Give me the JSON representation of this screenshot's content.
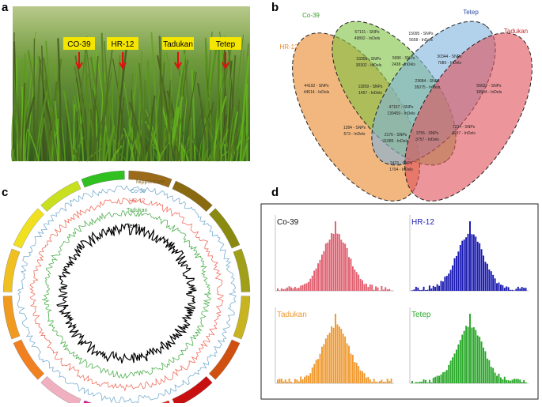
{
  "panels": {
    "a": "a",
    "b": "b",
    "c": "c",
    "d": "d"
  },
  "photo": {
    "labels": [
      "CO-39",
      "HR-12",
      "Tadukan",
      "Tetep"
    ]
  },
  "venn": {
    "sets": [
      "HR-12",
      "Co-39",
      "Tetep",
      "Tadukan"
    ],
    "regions": [
      [
        "57131 - SNPs",
        "49892 - InDels"
      ],
      [
        "15095 - SNPs",
        "5658 - InDels"
      ],
      [
        "56627 - SNPs",
        "16504 - InDels"
      ],
      [
        "44192 - SNPs",
        "44614 - InDels"
      ],
      [
        "33358 - SNPs",
        "30302 - InDels"
      ],
      [
        "5696 - SNPs",
        "2438 - InDels"
      ],
      [
        "30344 - SNPs",
        "7080 - InDels"
      ],
      [
        "11859 - SNPs",
        "1457 - InDels"
      ],
      [
        "23684 - SNPs",
        "35075 - InDels"
      ],
      [
        "47157 - SNPs",
        "130459 - InDels"
      ],
      [
        "1284 - SNPs",
        "573 - InDels"
      ],
      [
        "2176 - SNPs",
        "11085 - InDels"
      ],
      [
        "3755 - SNPs",
        "3757 - InDels"
      ],
      [
        "7234 - SNPs",
        "4297 - InDels"
      ],
      [
        "2423 - SNPs",
        "1704 - InDels"
      ]
    ]
  },
  "circos": {
    "tracks": [
      "Nipponbare",
      "Co-39",
      "HR-12",
      "Tadukan",
      "Tetep"
    ]
  },
  "histograms": {
    "titles": [
      "Co-39",
      "HR-12",
      "Tadukan",
      "Tetep"
    ]
  }
}
